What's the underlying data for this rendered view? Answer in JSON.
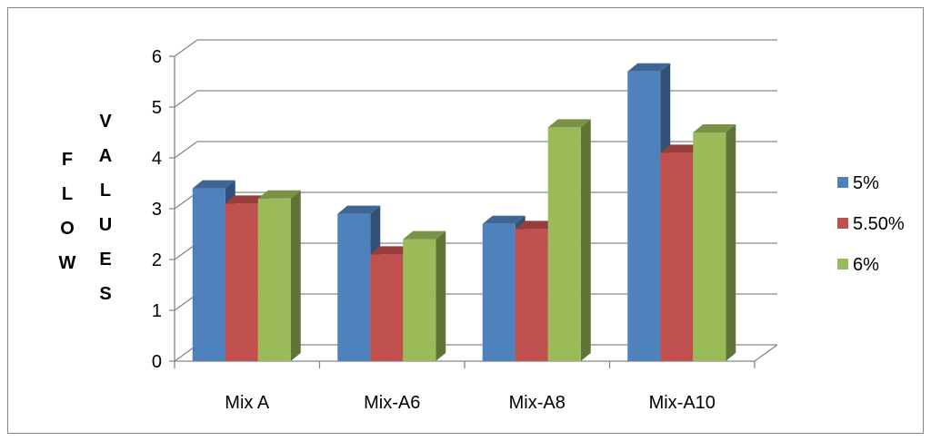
{
  "chart_data": {
    "type": "bar",
    "categories": [
      "Mix A",
      "Mix-A6",
      "Mix-A8",
      "Mix-A10"
    ],
    "series": [
      {
        "name": "5%",
        "values": [
          3.4,
          2.9,
          2.7,
          5.7
        ],
        "color": "#4F81BD"
      },
      {
        "name": "5.50%",
        "values": [
          3.1,
          2.1,
          2.6,
          4.1
        ],
        "color": "#C0504D"
      },
      {
        "name": "6%",
        "values": [
          3.2,
          2.4,
          4.6,
          4.5
        ],
        "color": "#9BBB59"
      }
    ],
    "ylim": [
      0,
      6
    ],
    "yticks": [
      "0",
      "1",
      "2",
      "3",
      "4",
      "5",
      "6"
    ],
    "ylabel_columns": [
      [
        "F",
        "L",
        "O",
        "W"
      ],
      [
        "V",
        "A",
        "L",
        "U",
        "E",
        "S"
      ]
    ],
    "grid": true,
    "legend_position": "right",
    "style": "3d-clustered-column"
  }
}
